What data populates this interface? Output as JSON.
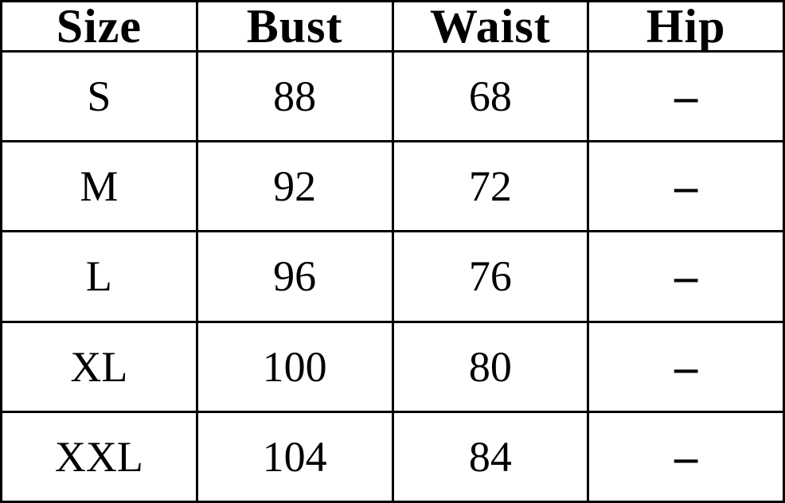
{
  "page": {
    "background_color": "#ffffff",
    "border_color": "#000000",
    "text_color": "#000000"
  },
  "chart_data": {
    "type": "table",
    "title": "",
    "columns": [
      "Size",
      "Bust",
      "Waist",
      "Hip"
    ],
    "rows": [
      [
        "S",
        "88",
        "68",
        "–"
      ],
      [
        "M",
        "92",
        "72",
        "–"
      ],
      [
        "L",
        "96",
        "76",
        "–"
      ],
      [
        "XL",
        "100",
        "80",
        "–"
      ],
      [
        "XXL",
        "104",
        "84",
        "–"
      ]
    ],
    "notes": "Hip column shows a dash (no value) for every size"
  }
}
